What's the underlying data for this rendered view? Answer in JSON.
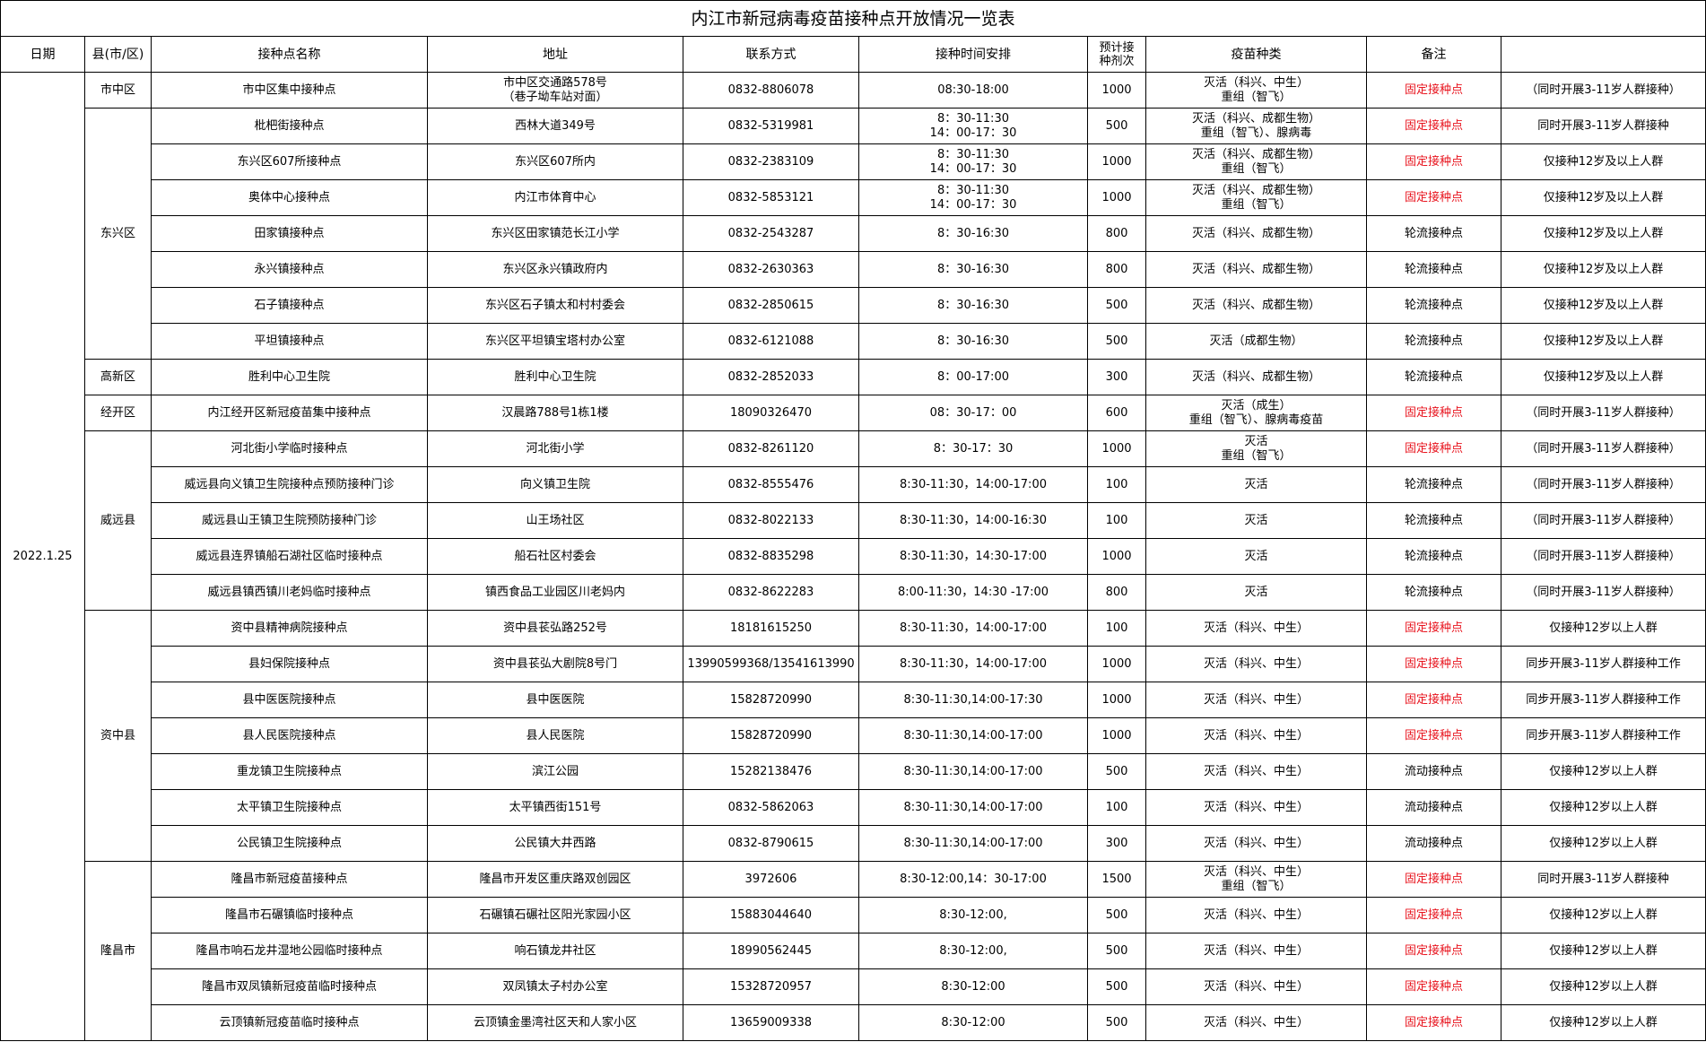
{
  "title": "内江市新冠病毒疫苗接种点开放情况一览表",
  "headers": [
    "日期",
    "县(市/区)",
    "接种点名称",
    "地址",
    "联系方式",
    "接种时间安排",
    "预计接\n种剂次",
    "疫苗种类",
    "备注",
    ""
  ],
  "date": "2022.1.25",
  "highlight_color": "#e8141e",
  "highlight_note": "固定接种点",
  "groups": [
    {
      "county": "市中区",
      "rows": [
        {
          "name": "市中区集中接种点",
          "address": "市中区交通路578号\n（巷子坳车站对面）",
          "phone": "0832-8806078",
          "time": "08:30-18:00",
          "doses": "1000",
          "vaccine": "灭活（科兴、中生）\n重组（智飞）",
          "note": "固定接种点",
          "remark": "（同时开展3-11岁人群接种）"
        }
      ]
    },
    {
      "county": "东兴区",
      "rows": [
        {
          "name": "枇杷街接种点",
          "address": "西林大道349号",
          "phone": "0832-5319981",
          "time": "8：30-11:30\n14：00-17：30",
          "doses": "500",
          "vaccine": "灭活（科兴、成都生物）\n重组（智飞）、腺病毒",
          "note": "固定接种点",
          "remark": "同时开展3-11岁人群接种"
        },
        {
          "name": "东兴区607所接种点",
          "address": "东兴区607所内",
          "phone": "0832-2383109",
          "time": "8：30-11:30\n14：00-17：30",
          "doses": "1000",
          "vaccine": "灭活（科兴、成都生物）\n重组（智飞）",
          "note": "固定接种点",
          "remark": "仅接种12岁及以上人群"
        },
        {
          "name": "奥体中心接种点",
          "address": "内江市体育中心",
          "phone": "0832-5853121",
          "time": "8：30-11:30\n14：00-17：30",
          "doses": "1000",
          "vaccine": "灭活（科兴、成都生物）\n重组（智飞）",
          "note": "固定接种点",
          "remark": "仅接种12岁及以上人群"
        },
        {
          "name": "田家镇接种点",
          "address": "东兴区田家镇范长江小学",
          "phone": "0832-2543287",
          "time": "8：30-16:30",
          "doses": "800",
          "vaccine": "灭活（科兴、成都生物）",
          "note": "轮流接种点",
          "remark": "仅接种12岁及以上人群"
        },
        {
          "name": "永兴镇接种点",
          "address": "东兴区永兴镇政府内",
          "phone": "0832-2630363",
          "time": "8：30-16:30",
          "doses": "800",
          "vaccine": "灭活（科兴、成都生物）",
          "note": "轮流接种点",
          "remark": "仅接种12岁及以上人群"
        },
        {
          "name": "石子镇接种点",
          "address": "东兴区石子镇太和村村委会",
          "phone": "0832-2850615",
          "time": "8：30-16:30",
          "doses": "500",
          "vaccine": "灭活（科兴、成都生物）",
          "note": "轮流接种点",
          "remark": "仅接种12岁及以上人群"
        },
        {
          "name": "平坦镇接种点",
          "address": "东兴区平坦镇宝塔村办公室",
          "phone": "0832-6121088",
          "time": "8：30-16:30",
          "doses": "500",
          "vaccine": "灭活（成都生物）",
          "note": "轮流接种点",
          "remark": "仅接种12岁及以上人群"
        }
      ]
    },
    {
      "county": "高新区",
      "rows": [
        {
          "name": "胜利中心卫生院",
          "address": "胜利中心卫生院",
          "phone": "0832-2852033",
          "time": "8：00-17:00",
          "doses": "300",
          "vaccine": "灭活（科兴、成都生物）",
          "note": "轮流接种点",
          "remark": "仅接种12岁及以上人群"
        }
      ]
    },
    {
      "county": "经开区",
      "rows": [
        {
          "name": "内江经开区新冠疫苗集中接种点",
          "address": "汉晨路788号1栋1楼",
          "phone": "18090326470",
          "time": "08：30-17：00",
          "doses": "600",
          "vaccine": "灭活（成生）\n重组（智飞）、腺病毒疫苗",
          "note": "固定接种点",
          "remark": "（同时开展3-11岁人群接种）"
        }
      ]
    },
    {
      "county": "威远县",
      "rows": [
        {
          "name": "河北街小学临时接种点",
          "address": "河北街小学",
          "phone": "0832-8261120",
          "time": "8：30-17：30",
          "doses": "1000",
          "vaccine": "灭活\n重组（智飞）",
          "note": "固定接种点",
          "remark": "（同时开展3-11岁人群接种）"
        },
        {
          "name": "威远县向义镇卫生院接种点预防接种门诊",
          "address": "向义镇卫生院",
          "phone": "0832-8555476",
          "time": "8:30-11:30，14:00-17:00",
          "doses": "100",
          "vaccine": "灭活",
          "note": "轮流接种点",
          "remark": "（同时开展3-11岁人群接种）"
        },
        {
          "name": "威远县山王镇卫生院预防接种门诊",
          "address": "山王场社区",
          "phone": "0832-8022133",
          "time": "8:30-11:30，14:00-16:30",
          "doses": "100",
          "vaccine": "灭活",
          "note": "轮流接种点",
          "remark": "（同时开展3-11岁人群接种）"
        },
        {
          "name": "威远县连界镇船石湖社区临时接种点",
          "address": "船石社区村委会",
          "phone": "0832-8835298",
          "time": "8:30-11:30，14:30-17:00",
          "doses": "1000",
          "vaccine": "灭活",
          "note": "轮流接种点",
          "remark": "（同时开展3-11岁人群接种）"
        },
        {
          "name": "威远县镇西镇川老妈临时接种点",
          "address": "镇西食品工业园区川老妈内",
          "phone": "0832-8622283",
          "time": "8:00-11:30，14:30 -17:00",
          "doses": "800",
          "vaccine": "灭活",
          "note": "轮流接种点",
          "remark": "（同时开展3-11岁人群接种）"
        }
      ]
    },
    {
      "county": "资中县",
      "rows": [
        {
          "name": "资中县精神病院接种点",
          "address": "资中县苌弘路252号",
          "phone": "18181615250",
          "time": "8:30-11:30，14:00-17:00",
          "doses": "100",
          "vaccine": "灭活（科兴、中生）",
          "note": "固定接种点",
          "remark": "仅接种12岁以上人群"
        },
        {
          "name": "县妇保院接种点",
          "address": "资中县苌弘大剧院8号门",
          "phone": "13990599368/13541613990",
          "time": "8:30-11:30，14:00-17:00",
          "doses": "1000",
          "vaccine": "灭活（科兴、中生）",
          "note": "固定接种点",
          "remark": "同步开展3-11岁人群接种工作"
        },
        {
          "name": "县中医医院接种点",
          "address": "县中医医院",
          "phone": "15828720990",
          "time": "8:30-11:30,14:00-17:30",
          "doses": "1000",
          "vaccine": "灭活（科兴、中生）",
          "note": "固定接种点",
          "remark": "同步开展3-11岁人群接种工作"
        },
        {
          "name": "县人民医院接种点",
          "address": "县人民医院",
          "phone": "15828720990",
          "time": "8:30-11:30,14:00-17:00",
          "doses": "1000",
          "vaccine": "灭活（科兴、中生）",
          "note": "固定接种点",
          "remark": "同步开展3-11岁人群接种工作"
        },
        {
          "name": "重龙镇卫生院接种点",
          "address": "滨江公园",
          "phone": "15282138476",
          "time": "8:30-11:30,14:00-17:00",
          "doses": "500",
          "vaccine": "灭活（科兴、中生）",
          "note": "流动接种点",
          "remark": "仅接种12岁以上人群"
        },
        {
          "name": "太平镇卫生院接种点",
          "address": "太平镇西街151号",
          "phone": "0832-5862063",
          "time": "8:30-11:30,14:00-17:00",
          "doses": "100",
          "vaccine": "灭活（科兴、中生）",
          "note": "流动接种点",
          "remark": "仅接种12岁以上人群"
        },
        {
          "name": "公民镇卫生院接种点",
          "address": "公民镇大井西路",
          "phone": "0832-8790615",
          "time": "8:30-11:30,14:00-17:00",
          "doses": "300",
          "vaccine": "灭活（科兴、中生）",
          "note": "流动接种点",
          "remark": "仅接种12岁以上人群"
        }
      ]
    },
    {
      "county": "隆昌市",
      "rows": [
        {
          "name": "隆昌市新冠疫苗接种点",
          "address": "隆昌市开发区重庆路双创园区",
          "phone": "3972606",
          "time": "8:30-12:00,14：30-17:00",
          "doses": "1500",
          "vaccine": "灭活（科兴、中生）\n重组（智飞）",
          "note": "固定接种点",
          "remark": "同时开展3-11岁人群接种"
        },
        {
          "name": "隆昌市石碾镇临时接种点",
          "address": "石碾镇石碾社区阳光家园小区",
          "phone": "15883044640",
          "time": "8:30-12:00,",
          "doses": "500",
          "vaccine": "灭活（科兴、中生）",
          "note": "固定接种点",
          "remark": "仅接种12岁以上人群"
        },
        {
          "name": "隆昌市响石龙井湿地公园临时接种点",
          "address": "响石镇龙井社区",
          "phone": "18990562445",
          "time": "8:30-12:00,",
          "doses": "500",
          "vaccine": "灭活（科兴、中生）",
          "note": "固定接种点",
          "remark": "仅接种12岁以上人群"
        },
        {
          "name": "隆昌市双凤镇新冠疫苗临时接种点",
          "address": "双凤镇太子村办公室",
          "phone": "15328720957",
          "time": "8:30-12:00",
          "doses": "500",
          "vaccine": "灭活（科兴、中生）",
          "note": "固定接种点",
          "remark": "仅接种12岁以上人群"
        },
        {
          "name": "云顶镇新冠疫苗临时接种点",
          "address": "云顶镇金墨湾社区天和人家小区",
          "phone": "13659009338",
          "time": "8:30-12:00",
          "doses": "500",
          "vaccine": "灭活（科兴、中生）",
          "note": "固定接种点",
          "remark": "仅接种12岁以上人群"
        }
      ]
    }
  ]
}
